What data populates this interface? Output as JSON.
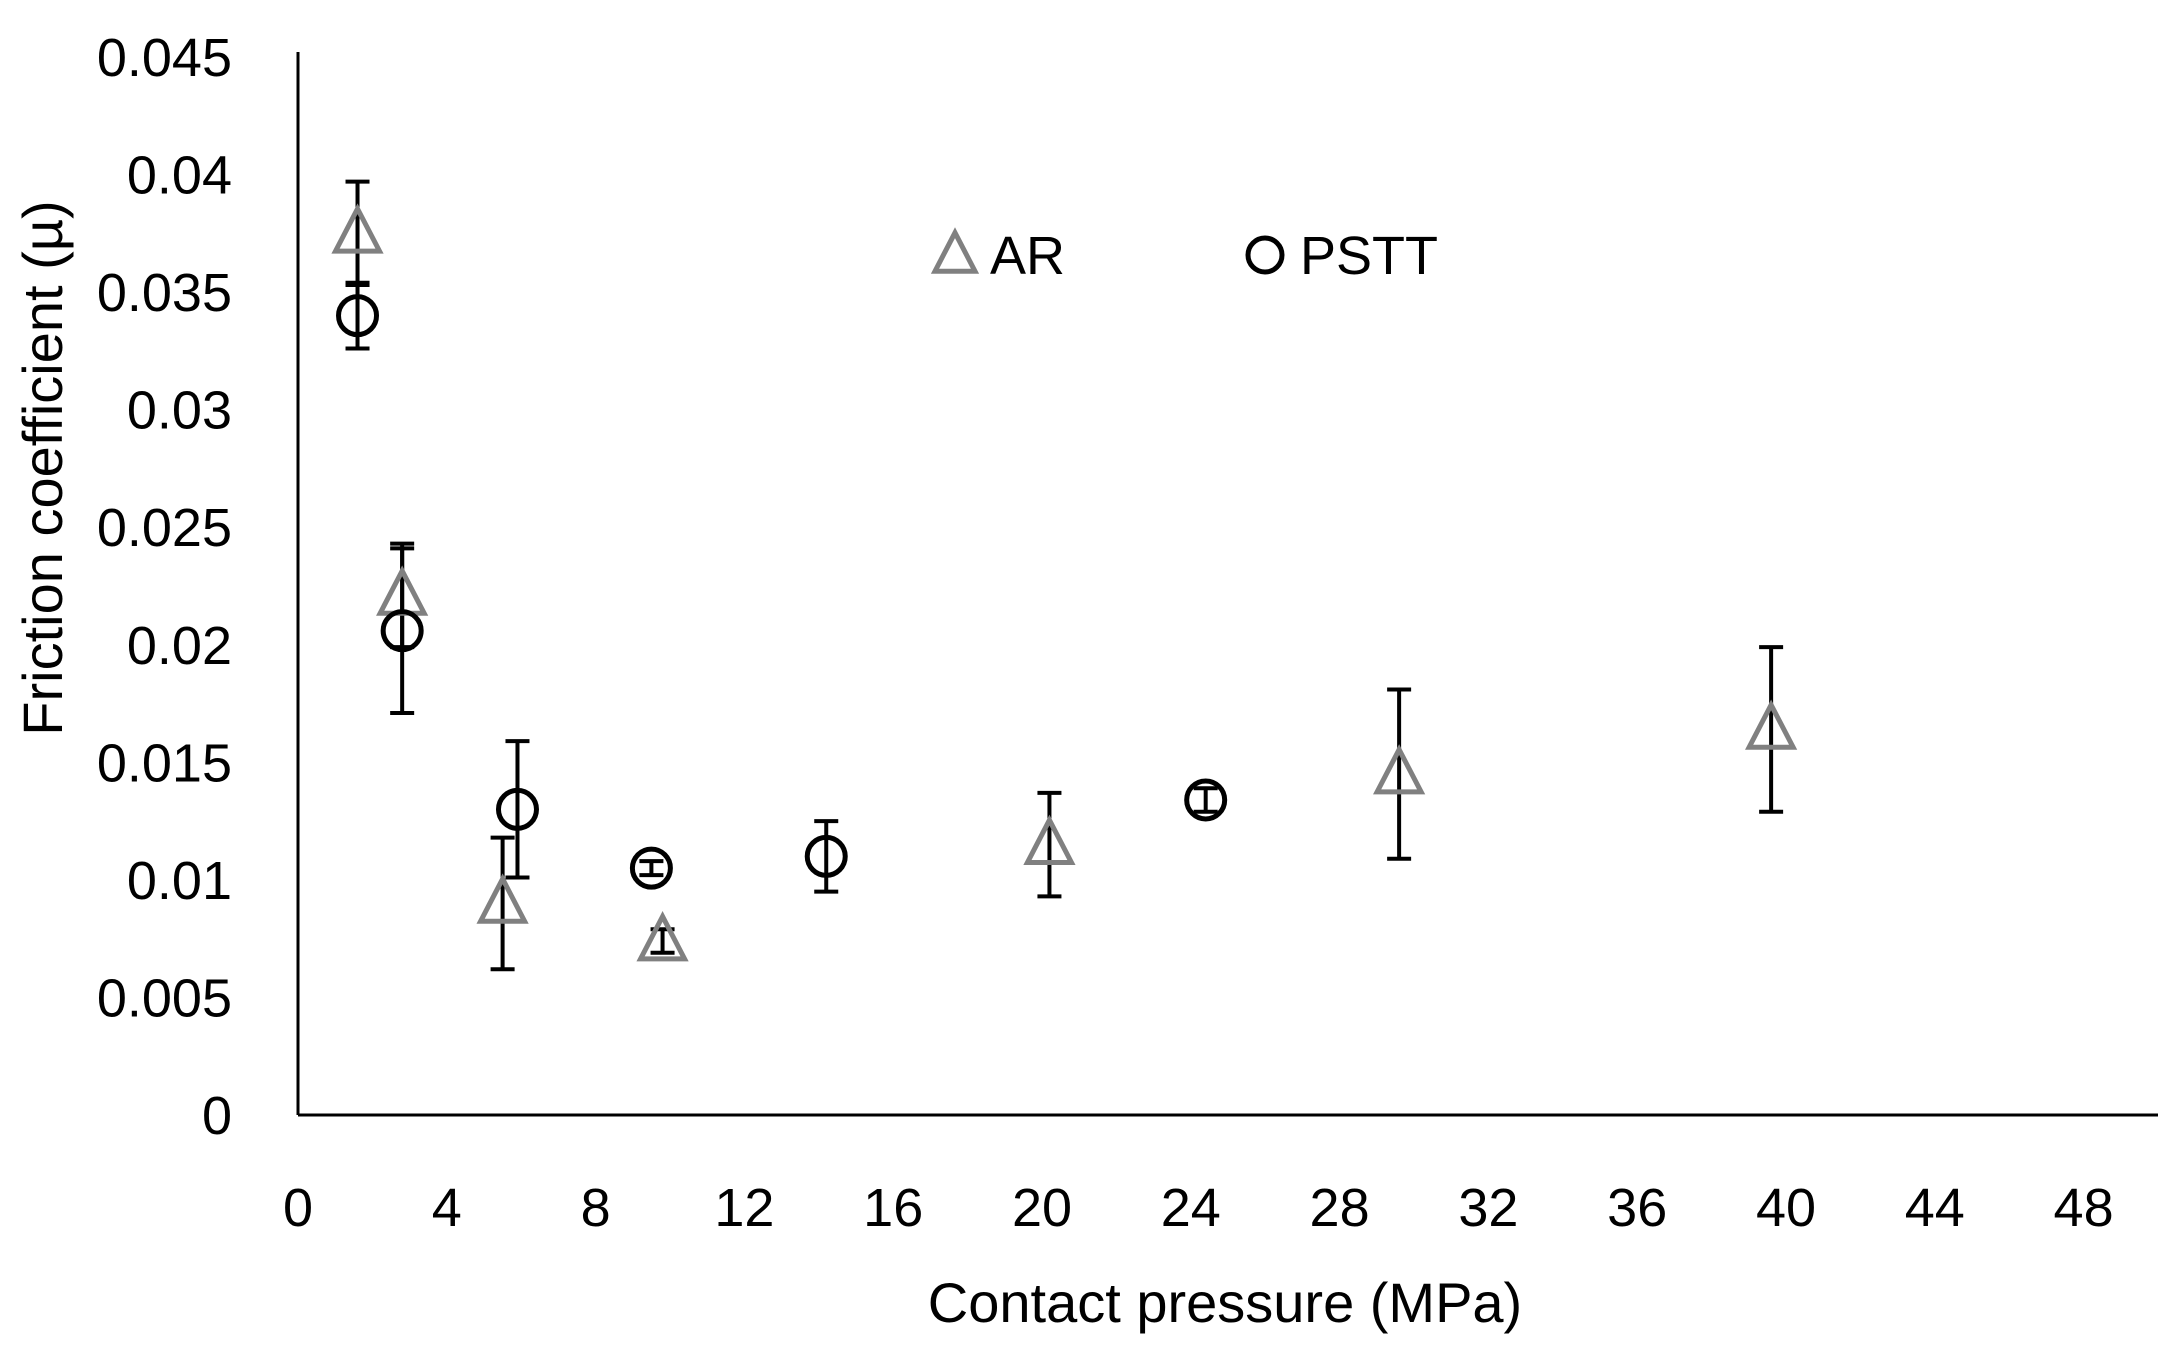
{
  "chart_data": {
    "type": "scatter",
    "title": "",
    "xlabel": "Contact pressure (MPa)",
    "ylabel": "Friction coefficient (µ)",
    "xlim": [
      0,
      50
    ],
    "ylim": [
      0,
      0.045
    ],
    "xticks": [
      0,
      4,
      8,
      12,
      16,
      20,
      24,
      28,
      32,
      36,
      40,
      44,
      48
    ],
    "xtick_labels": [
      "0",
      "4",
      "8",
      "12",
      "16",
      "20",
      "24",
      "28",
      "32",
      "36",
      "40",
      "44",
      "48"
    ],
    "yticks": [
      0,
      0.005,
      0.01,
      0.015,
      0.02,
      0.025,
      0.03,
      0.035,
      0.04,
      0.045
    ],
    "ytick_labels": [
      "0",
      "0.005",
      "0.01",
      "0.015",
      "0.02",
      "0.025",
      "0.03",
      "0.035",
      "0.04",
      "0.045"
    ],
    "grid": false,
    "legend_position": "top-center",
    "series": [
      {
        "name": "AR",
        "marker": "triangle",
        "color": "#808080",
        "points": [
          {
            "x": 1.6,
            "y": 0.0375,
            "err": 0.0022
          },
          {
            "x": 2.8,
            "y": 0.0221,
            "err": 0.0022
          },
          {
            "x": 5.5,
            "y": 0.009,
            "err": 0.0028
          },
          {
            "x": 9.8,
            "y": 0.0074,
            "err": 0.0005
          },
          {
            "x": 20.2,
            "y": 0.0115,
            "err": 0.0022
          },
          {
            "x": 29.6,
            "y": 0.0145,
            "err": 0.0036
          },
          {
            "x": 39.6,
            "y": 0.0164,
            "err": 0.0035
          }
        ]
      },
      {
        "name": "PSTT",
        "marker": "circle",
        "color": "#000000",
        "points": [
          {
            "x": 1.6,
            "y": 0.034,
            "err": 0.0014
          },
          {
            "x": 2.8,
            "y": 0.0206,
            "err": 0.0035
          },
          {
            "x": 5.9,
            "y": 0.013,
            "err": 0.0029
          },
          {
            "x": 9.5,
            "y": 0.0105,
            "err": 0.0003
          },
          {
            "x": 14.2,
            "y": 0.011,
            "err": 0.0015
          },
          {
            "x": 24.4,
            "y": 0.0134,
            "err": 0.0005
          }
        ]
      }
    ]
  }
}
